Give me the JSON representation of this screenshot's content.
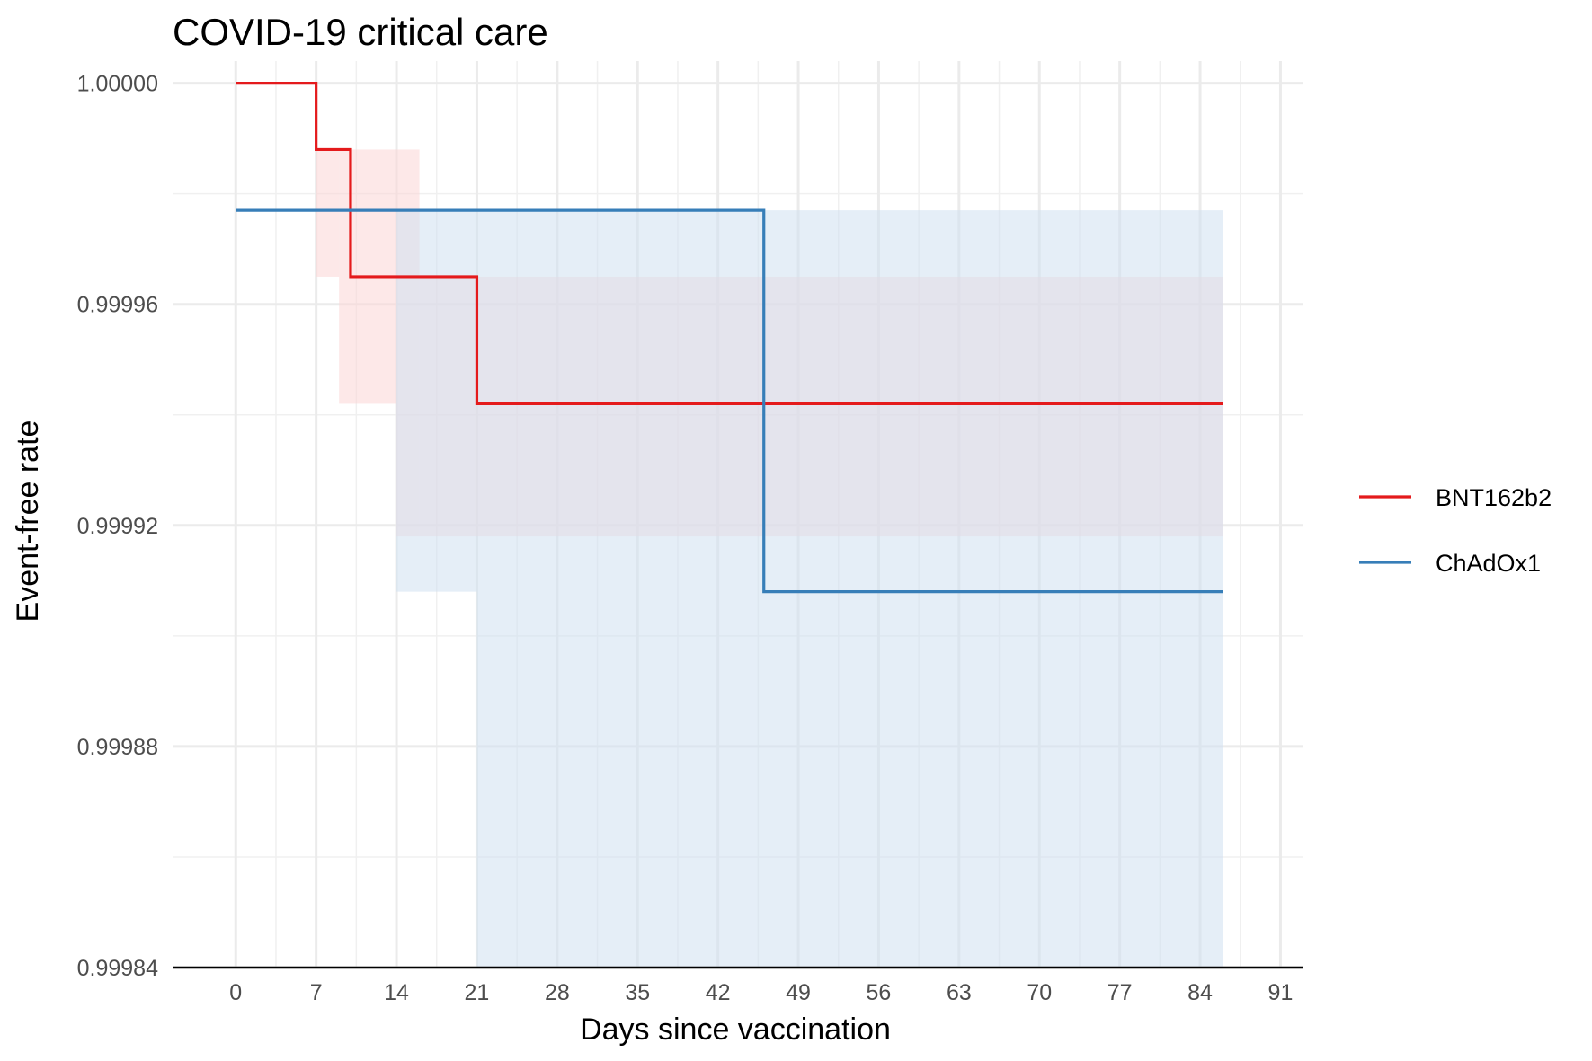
{
  "chart_data": {
    "type": "line",
    "title": "COVID-19 critical care",
    "xlabel": "Days since vaccination",
    "ylabel": "Event-free rate",
    "xlim": [
      -5.5,
      93
    ],
    "ylim": [
      0.99984,
      1.0
    ],
    "x_ticks": [
      0,
      7,
      14,
      21,
      28,
      35,
      42,
      49,
      56,
      63,
      70,
      77,
      84,
      91
    ],
    "x_tick_labels": [
      "0",
      "7",
      "14",
      "21",
      "28",
      "35",
      "42",
      "49",
      "56",
      "63",
      "70",
      "77",
      "84",
      "91"
    ],
    "y_ticks": [
      0.99984,
      0.99988,
      0.99992,
      0.99996,
      1.0
    ],
    "y_tick_labels": [
      "0.99984",
      "0.99988",
      "0.99992",
      "0.99996",
      "1.00000"
    ],
    "y_minor_ticks": [
      0.99986,
      0.9999,
      0.99994,
      0.99998
    ],
    "grid": true,
    "legend_position": "right",
    "series": [
      {
        "name": "BNT162b2",
        "color": "#e41a1c",
        "band_color": "#fbd5d5",
        "step": [
          {
            "x": 0,
            "y": 1.0
          },
          {
            "x": 7,
            "y": 0.999988
          },
          {
            "x": 10,
            "y": 0.999965
          },
          {
            "x": 21,
            "y": 0.999942
          },
          {
            "x": 86,
            "y": 0.999942
          }
        ],
        "ci": [
          {
            "x0": 7,
            "x1": 9,
            "lower": 0.999965,
            "upper": 0.999988
          },
          {
            "x0": 9,
            "x1": 14,
            "lower": 0.999942,
            "upper": 0.999988
          },
          {
            "x0": 14,
            "x1": 16,
            "lower": 0.999918,
            "upper": 0.999988
          },
          {
            "x0": 16,
            "x1": 86,
            "lower": 0.999918,
            "upper": 0.999965
          }
        ]
      },
      {
        "name": "ChAdOx1",
        "color": "#377eb8",
        "band_color": "#cfe0f0",
        "step": [
          {
            "x": 0,
            "y": 0.999977
          },
          {
            "x": 46,
            "y": 0.999908
          },
          {
            "x": 86,
            "y": 0.999908
          }
        ],
        "ci": [
          {
            "x0": 14,
            "x1": 21,
            "lower": 0.999908,
            "upper": 0.999977
          },
          {
            "x0": 21,
            "x1": 86,
            "lower": 0.99984,
            "upper": 0.999977
          }
        ]
      }
    ]
  }
}
